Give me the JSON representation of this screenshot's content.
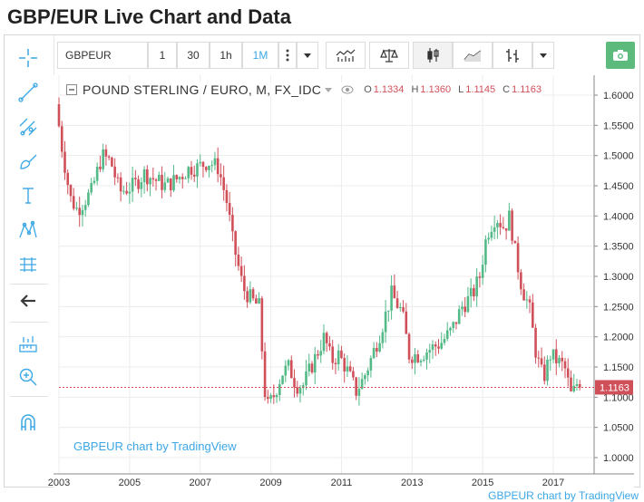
{
  "page": {
    "title": "GBP/EUR Live Chart and Data"
  },
  "toolbar": {
    "symbol": "GBPEUR",
    "intervals": [
      "1",
      "30",
      "1h",
      "1M"
    ],
    "active_interval": "1M",
    "more_icon": "vertical-dots-icon",
    "dropdown_icon": "caret-down-icon",
    "buttons": [
      "indicators-icon",
      "compare-icon",
      "candles-style-icon",
      "line-style-icon",
      "bars-style-icon",
      "caret-down-icon"
    ],
    "snapshot_icon": "camera-icon"
  },
  "left_tools": [
    "crosshair-icon",
    "trendline-icon",
    "pitchfork-icon",
    "brush-icon",
    "text-icon",
    "pattern-icon",
    "position-icon",
    "back-arrow-icon",
    "measure-icon",
    "zoom-in-icon",
    "magnet-icon"
  ],
  "legend": {
    "symbol": "POUND STERLING / EURO, M, FX_IDC",
    "open_label": "O",
    "open": "1.1334",
    "high_label": "H",
    "high": "1.1360",
    "low_label": "L",
    "low": "1.1145",
    "close_label": "C",
    "close": "1.1163"
  },
  "colors": {
    "up": "#53b987",
    "down": "#d0505a",
    "accent": "#3ba7e4",
    "grid": "#ececec",
    "price_line": "#d0505a"
  },
  "watermark": "GBPEUR chart by TradingView",
  "footer": {
    "link": "GBPEUR chart by TradingView"
  },
  "chart_data": {
    "type": "candlestick",
    "title": "POUND STERLING / EURO, M, FX_IDC",
    "interval": "1M",
    "xlabel": "",
    "ylabel": "",
    "xlim": [
      2003,
      2018
    ],
    "ylim": [
      1.0,
      1.62
    ],
    "x_ticks": [
      "2003",
      "2005",
      "2007",
      "2009",
      "2011",
      "2013",
      "2015",
      "2017"
    ],
    "y_ticks": [
      "1.6000",
      "1.5500",
      "1.5000",
      "1.4500",
      "1.4000",
      "1.3500",
      "1.3000",
      "1.2500",
      "1.2000",
      "1.1500",
      "1.1000",
      "1.0500",
      "1.0000"
    ],
    "last_price": "1.1163",
    "anchors": [
      [
        2003.0,
        1.585
      ],
      [
        2003.15,
        1.52
      ],
      [
        2003.4,
        1.43
      ],
      [
        2003.6,
        1.41
      ],
      [
        2004.0,
        1.44
      ],
      [
        2004.3,
        1.5
      ],
      [
        2004.55,
        1.49
      ],
      [
        2004.8,
        1.44
      ],
      [
        2005.2,
        1.45
      ],
      [
        2005.5,
        1.47
      ],
      [
        2005.8,
        1.46
      ],
      [
        2006.1,
        1.45
      ],
      [
        2006.4,
        1.46
      ],
      [
        2006.8,
        1.48
      ],
      [
        2007.0,
        1.48
      ],
      [
        2007.3,
        1.49
      ],
      [
        2007.6,
        1.48
      ],
      [
        2007.85,
        1.42
      ],
      [
        2008.0,
        1.36
      ],
      [
        2008.3,
        1.28
      ],
      [
        2008.55,
        1.26
      ],
      [
        2008.75,
        1.25
      ],
      [
        2008.95,
        1.08
      ],
      [
        2009.15,
        1.1
      ],
      [
        2009.4,
        1.14
      ],
      [
        2009.6,
        1.15
      ],
      [
        2009.8,
        1.12
      ],
      [
        2010.0,
        1.12
      ],
      [
        2010.3,
        1.16
      ],
      [
        2010.6,
        1.2
      ],
      [
        2010.8,
        1.16
      ],
      [
        2011.0,
        1.17
      ],
      [
        2011.2,
        1.15
      ],
      [
        2011.5,
        1.11
      ],
      [
        2011.7,
        1.13
      ],
      [
        2011.9,
        1.16
      ],
      [
        2012.2,
        1.21
      ],
      [
        2012.5,
        1.27
      ],
      [
        2012.8,
        1.24
      ],
      [
        2013.0,
        1.17
      ],
      [
        2013.3,
        1.17
      ],
      [
        2013.6,
        1.18
      ],
      [
        2013.9,
        1.19
      ],
      [
        2014.2,
        1.21
      ],
      [
        2014.5,
        1.25
      ],
      [
        2014.8,
        1.27
      ],
      [
        2015.0,
        1.3
      ],
      [
        2015.2,
        1.37
      ],
      [
        2015.45,
        1.4
      ],
      [
        2015.7,
        1.38
      ],
      [
        2015.85,
        1.4
      ],
      [
        2016.0,
        1.34
      ],
      [
        2016.2,
        1.28
      ],
      [
        2016.4,
        1.25
      ],
      [
        2016.6,
        1.17
      ],
      [
        2016.8,
        1.13
      ],
      [
        2017.0,
        1.17
      ],
      [
        2017.2,
        1.16
      ],
      [
        2017.4,
        1.15
      ],
      [
        2017.6,
        1.1
      ],
      [
        2017.8,
        1.13
      ]
    ]
  }
}
